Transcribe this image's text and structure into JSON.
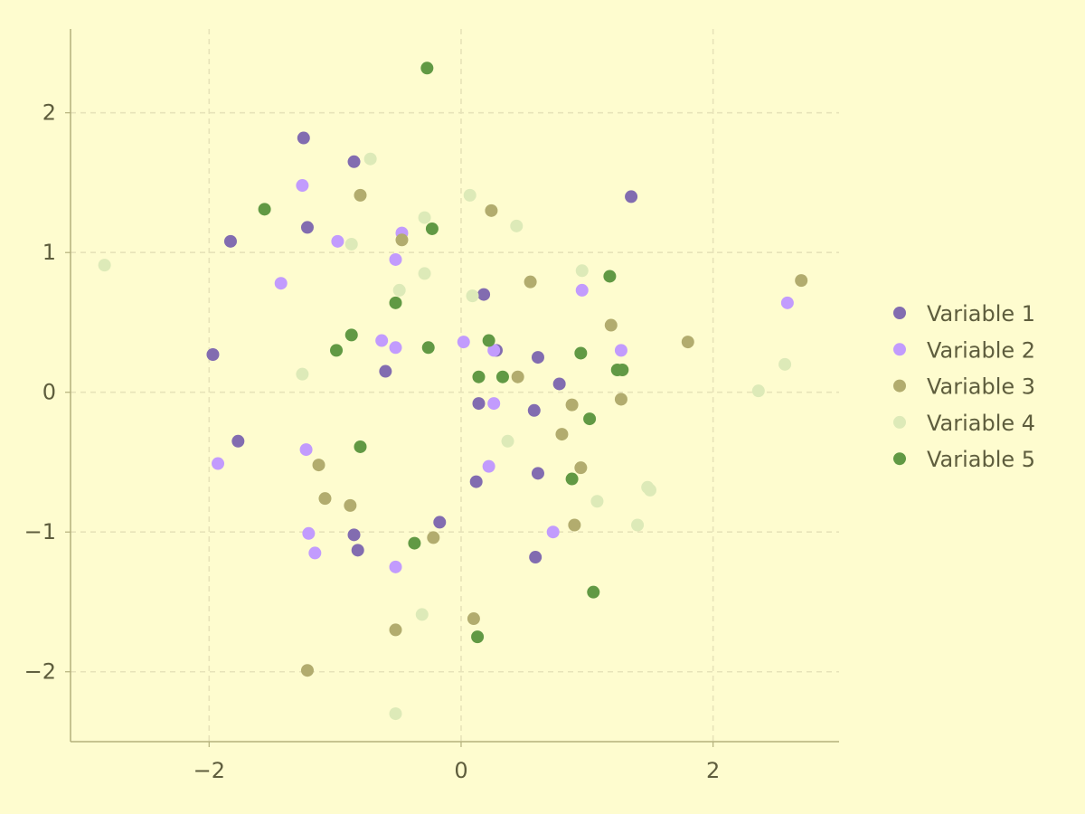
{
  "chart_data": {
    "type": "scatter",
    "title": "",
    "xlabel": "",
    "ylabel": "",
    "xlim": [
      -3.1,
      3.0
    ],
    "ylim": [
      -2.5,
      2.6
    ],
    "xticks": [
      -2,
      0,
      2
    ],
    "yticks": [
      -2,
      -1,
      0,
      1,
      2
    ],
    "xtick_labels": [
      "−2",
      "0",
      "2"
    ],
    "ytick_labels": [
      "−2",
      "−1",
      "0",
      "1",
      "2"
    ],
    "grid": true,
    "legend_position": "right",
    "colors": {
      "background": "#fefccf",
      "axis": "#b3b07c",
      "grid": "#e7e3b9",
      "text": "#5e5d3d"
    },
    "series": [
      {
        "name": "Variable 1",
        "color": "#826cb0",
        "points": [
          [
            -1.25,
            1.82
          ],
          [
            -0.85,
            1.65
          ],
          [
            -1.22,
            1.18
          ],
          [
            -1.83,
            1.08
          ],
          [
            1.35,
            1.4
          ],
          [
            0.18,
            0.7
          ],
          [
            -1.97,
            0.27
          ],
          [
            0.28,
            0.3
          ],
          [
            0.61,
            0.25
          ],
          [
            -0.6,
            0.15
          ],
          [
            0.78,
            0.06
          ],
          [
            0.14,
            -0.08
          ],
          [
            0.58,
            -0.13
          ],
          [
            -1.77,
            -0.35
          ],
          [
            0.12,
            -0.64
          ],
          [
            0.61,
            -0.58
          ],
          [
            -0.17,
            -0.93
          ],
          [
            -0.85,
            -1.02
          ],
          [
            -0.82,
            -1.13
          ],
          [
            0.59,
            -1.18
          ]
        ]
      },
      {
        "name": "Variable 2",
        "color": "#c29bfd",
        "points": [
          [
            -1.26,
            1.48
          ],
          [
            -0.47,
            1.14
          ],
          [
            -0.98,
            1.08
          ],
          [
            -0.52,
            0.95
          ],
          [
            -1.43,
            0.78
          ],
          [
            0.96,
            0.73
          ],
          [
            2.59,
            0.64
          ],
          [
            -0.63,
            0.37
          ],
          [
            -0.52,
            0.32
          ],
          [
            0.02,
            0.36
          ],
          [
            1.27,
            0.3
          ],
          [
            0.26,
            0.3
          ],
          [
            0.26,
            -0.08
          ],
          [
            -1.23,
            -0.41
          ],
          [
            -1.93,
            -0.51
          ],
          [
            0.22,
            -0.53
          ],
          [
            -1.21,
            -1.01
          ],
          [
            0.73,
            -1.0
          ],
          [
            -1.16,
            -1.15
          ],
          [
            -0.52,
            -1.25
          ]
        ]
      },
      {
        "name": "Variable 3",
        "color": "#b2ac6e",
        "points": [
          [
            -0.8,
            1.41
          ],
          [
            0.24,
            1.3
          ],
          [
            -0.47,
            1.09
          ],
          [
            0.55,
            0.79
          ],
          [
            2.7,
            0.8
          ],
          [
            1.19,
            0.48
          ],
          [
            1.8,
            0.36
          ],
          [
            0.45,
            0.11
          ],
          [
            0.88,
            -0.09
          ],
          [
            1.27,
            -0.05
          ],
          [
            0.8,
            -0.3
          ],
          [
            -1.13,
            -0.52
          ],
          [
            0.95,
            -0.54
          ],
          [
            -1.08,
            -0.76
          ],
          [
            -0.88,
            -0.81
          ],
          [
            0.9,
            -0.95
          ],
          [
            -0.22,
            -1.04
          ],
          [
            0.1,
            -1.62
          ],
          [
            -0.52,
            -1.7
          ],
          [
            -1.22,
            -1.99
          ]
        ]
      },
      {
        "name": "Variable 4",
        "color": "#ddeab8",
        "points": [
          [
            -0.72,
            1.67
          ],
          [
            0.07,
            1.41
          ],
          [
            -0.29,
            1.25
          ],
          [
            0.44,
            1.19
          ],
          [
            -0.87,
            1.06
          ],
          [
            -2.83,
            0.91
          ],
          [
            0.96,
            0.87
          ],
          [
            -0.29,
            0.85
          ],
          [
            -0.49,
            0.73
          ],
          [
            0.09,
            0.69
          ],
          [
            -1.26,
            0.13
          ],
          [
            2.36,
            0.01
          ],
          [
            2.57,
            0.2
          ],
          [
            0.37,
            -0.35
          ],
          [
            1.48,
            -0.68
          ],
          [
            1.5,
            -0.7
          ],
          [
            1.08,
            -0.78
          ],
          [
            1.4,
            -0.95
          ],
          [
            -0.31,
            -1.59
          ],
          [
            -0.52,
            -2.3
          ]
        ]
      },
      {
        "name": "Variable 5",
        "color": "#619944",
        "points": [
          [
            -0.27,
            2.32
          ],
          [
            -1.56,
            1.31
          ],
          [
            -0.23,
            1.17
          ],
          [
            1.18,
            0.83
          ],
          [
            -0.52,
            0.64
          ],
          [
            -0.87,
            0.41
          ],
          [
            0.22,
            0.37
          ],
          [
            -0.99,
            0.3
          ],
          [
            -0.26,
            0.32
          ],
          [
            0.95,
            0.28
          ],
          [
            0.14,
            0.11
          ],
          [
            0.33,
            0.11
          ],
          [
            1.24,
            0.16
          ],
          [
            1.28,
            0.16
          ],
          [
            1.02,
            -0.19
          ],
          [
            -0.8,
            -0.39
          ],
          [
            0.88,
            -0.62
          ],
          [
            -0.37,
            -1.08
          ],
          [
            1.05,
            -1.43
          ],
          [
            0.13,
            -1.75
          ]
        ]
      }
    ]
  }
}
